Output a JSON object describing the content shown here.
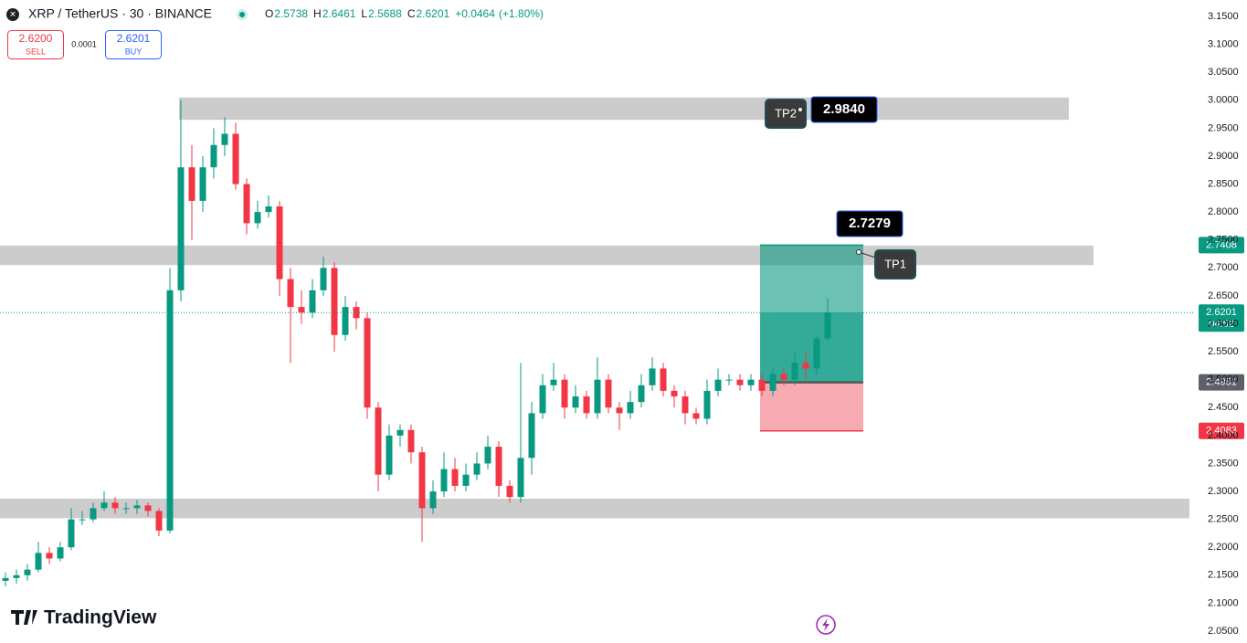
{
  "header": {
    "symbol": "XRP / TetherUS · 30 · BINANCE",
    "ohlc": [
      {
        "key": "O",
        "value": "2.5738"
      },
      {
        "key": "H",
        "value": "2.6461"
      },
      {
        "key": "L",
        "value": "2.5688"
      },
      {
        "key": "C",
        "value": "2.6201"
      }
    ],
    "change": "+0.0464",
    "change_pct": "(+1.80%)",
    "sell": {
      "price": "2.6200",
      "label": "SELL"
    },
    "spread": "0.0001",
    "buy": {
      "price": "2.6201",
      "label": "BUY"
    },
    "brand": "TradingView"
  },
  "chart_data": {
    "type": "candlestick",
    "up_color": "#089981",
    "down_color": "#f23645",
    "ylim": [
      2.05,
      3.15
    ],
    "yticks": [
      {
        "value": 3.15,
        "label": "3.1500"
      },
      {
        "value": 3.1,
        "label": "3.1000"
      },
      {
        "value": 3.05,
        "label": "3.0500"
      },
      {
        "value": 3.0,
        "label": "3.0000"
      },
      {
        "value": 2.95,
        "label": "2.9500"
      },
      {
        "value": 2.9,
        "label": "2.9000"
      },
      {
        "value": 2.85,
        "label": "2.8500"
      },
      {
        "value": 2.8,
        "label": "2.8000"
      },
      {
        "value": 2.75,
        "label": "2.7500"
      },
      {
        "value": 2.7,
        "label": "2.7000"
      },
      {
        "value": 2.65,
        "label": "2.6500"
      },
      {
        "value": 2.6,
        "label": "2.6000"
      },
      {
        "value": 2.55,
        "label": "2.5500"
      },
      {
        "value": 2.5,
        "label": "2.5000"
      },
      {
        "value": 2.45,
        "label": "2.4500"
      },
      {
        "value": 2.4,
        "label": "2.4000"
      },
      {
        "value": 2.35,
        "label": "2.3500"
      },
      {
        "value": 2.3,
        "label": "2.3000"
      },
      {
        "value": 2.25,
        "label": "2.2500"
      },
      {
        "value": 2.2,
        "label": "2.2000"
      },
      {
        "value": 2.15,
        "label": "2.1500"
      },
      {
        "value": 2.1,
        "label": "2.1000"
      },
      {
        "value": 2.05,
        "label": "2.0500"
      }
    ],
    "grid": false,
    "open": [
      2.14,
      2.145,
      2.15,
      2.16,
      2.19,
      2.18,
      2.2,
      2.25,
      2.25,
      2.27,
      2.28,
      2.27,
      2.27,
      2.275,
      2.265,
      2.23,
      2.66,
      2.88,
      2.82,
      2.88,
      2.92,
      2.94,
      2.85,
      2.78,
      2.8,
      2.81,
      2.68,
      2.63,
      2.62,
      2.66,
      2.7,
      2.58,
      2.63,
      2.61,
      2.45,
      2.33,
      2.4,
      2.41,
      2.37,
      2.27,
      2.3,
      2.34,
      2.31,
      2.33,
      2.35,
      2.38,
      2.31,
      2.29,
      2.36,
      2.44,
      2.49,
      2.5,
      2.45,
      2.47,
      2.44,
      2.5,
      2.45,
      2.44,
      2.46,
      2.49,
      2.52,
      2.48,
      2.47,
      2.44,
      2.43,
      2.48,
      2.5,
      2.5,
      2.49,
      2.5,
      2.48,
      2.51,
      2.5,
      2.53,
      2.52,
      2.5738
    ],
    "high": [
      2.155,
      2.16,
      2.17,
      2.21,
      2.2,
      2.21,
      2.27,
      2.265,
      2.28,
      2.3,
      2.29,
      2.28,
      2.285,
      2.28,
      2.27,
      2.7,
      3.0,
      2.92,
      2.9,
      2.95,
      2.97,
      2.96,
      2.86,
      2.82,
      2.83,
      2.82,
      2.7,
      2.66,
      2.68,
      2.72,
      2.71,
      2.65,
      2.64,
      2.62,
      2.46,
      2.42,
      2.42,
      2.42,
      2.38,
      2.32,
      2.37,
      2.36,
      2.35,
      2.37,
      2.4,
      2.39,
      2.32,
      2.53,
      2.46,
      2.51,
      2.53,
      2.51,
      2.49,
      2.48,
      2.54,
      2.51,
      2.46,
      2.48,
      2.51,
      2.54,
      2.53,
      2.49,
      2.48,
      2.45,
      2.5,
      2.52,
      2.51,
      2.51,
      2.51,
      2.51,
      2.52,
      2.52,
      2.55,
      2.55,
      2.58,
      2.6461
    ],
    "low": [
      2.13,
      2.135,
      2.14,
      2.155,
      2.17,
      2.175,
      2.195,
      2.24,
      2.245,
      2.265,
      2.26,
      2.26,
      2.26,
      2.255,
      2.22,
      2.225,
      2.64,
      2.75,
      2.8,
      2.86,
      2.9,
      2.84,
      2.76,
      2.77,
      2.79,
      2.65,
      2.53,
      2.6,
      2.61,
      2.65,
      2.55,
      2.57,
      2.59,
      2.43,
      2.3,
      2.32,
      2.38,
      2.35,
      2.21,
      2.26,
      2.29,
      2.3,
      2.3,
      2.32,
      2.34,
      2.29,
      2.28,
      2.28,
      2.33,
      2.43,
      2.48,
      2.43,
      2.44,
      2.43,
      2.43,
      2.44,
      2.41,
      2.43,
      2.45,
      2.48,
      2.47,
      2.45,
      2.42,
      2.42,
      2.42,
      2.47,
      2.49,
      2.48,
      2.48,
      2.47,
      2.47,
      2.49,
      2.49,
      2.5,
      2.51,
      2.5688
    ],
    "close": [
      2.145,
      2.15,
      2.16,
      2.19,
      2.18,
      2.2,
      2.25,
      2.25,
      2.27,
      2.28,
      2.27,
      2.27,
      2.275,
      2.265,
      2.23,
      2.66,
      2.88,
      2.82,
      2.88,
      2.92,
      2.94,
      2.85,
      2.78,
      2.8,
      2.81,
      2.68,
      2.63,
      2.62,
      2.66,
      2.7,
      2.58,
      2.63,
      2.61,
      2.45,
      2.33,
      2.4,
      2.41,
      2.37,
      2.27,
      2.3,
      2.34,
      2.31,
      2.33,
      2.35,
      2.38,
      2.31,
      2.29,
      2.36,
      2.44,
      2.49,
      2.5,
      2.45,
      2.47,
      2.44,
      2.5,
      2.45,
      2.44,
      2.46,
      2.49,
      2.52,
      2.48,
      2.47,
      2.44,
      2.43,
      2.48,
      2.5,
      2.5,
      2.49,
      2.5,
      2.48,
      2.51,
      2.5,
      2.53,
      2.52,
      2.5738,
      2.6201
    ],
    "zones": [
      {
        "low": 2.965,
        "high": 3.005
      },
      {
        "low": 2.705,
        "high": 2.74
      },
      {
        "low": 2.252,
        "high": 2.287
      }
    ],
    "zone_color": "#cccccc",
    "position": {
      "entry": 2.4951,
      "target": 2.7408,
      "stop": 2.4083
    },
    "last_price": 2.6201,
    "countdown": "04:52",
    "callouts": [
      {
        "price": 2.7279,
        "label": "TP1"
      },
      {
        "price": {
          "value": 2.984,
          "label": "2.9840"
        },
        "label": "TP2"
      }
    ]
  }
}
